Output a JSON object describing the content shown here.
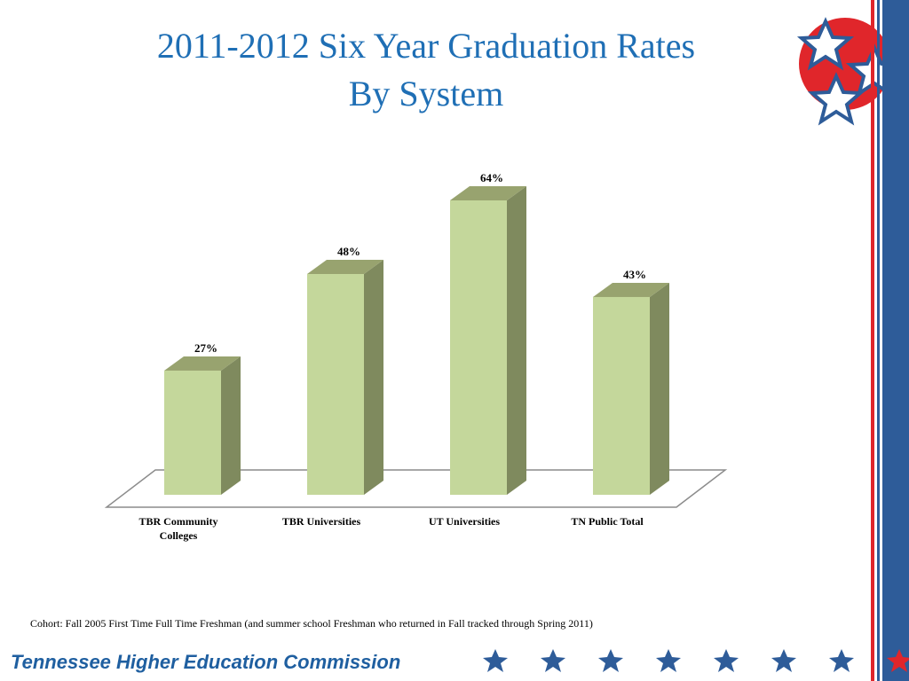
{
  "slide": {
    "title_line_1": "2011-2012 Six Year Graduation Rates",
    "title_line_2": "By System",
    "footnote": "Cohort: Fall 2005 First Time Full Time Freshman (and summer school Freshman who returned in Fall tracked through Spring 2011)",
    "footer_name": "Tennessee Higher Education Commission",
    "logo_icon": "three-stars-circle-icon",
    "footer_star_icon": "star-icon",
    "footer_star_count": 8,
    "colors": {
      "title": "#1f6fb5",
      "bar_front": "#c4d79b",
      "bar_side": "#7f8a5e",
      "bar_top": "#98a36f",
      "stripe_blue": "#2e5c99",
      "stripe_red": "#e0262b",
      "star_blue": "#2e5c99",
      "star_red": "#e0262b"
    }
  },
  "chart_data": {
    "type": "bar",
    "style": "3d-column",
    "categories": [
      "TBR Community Colleges",
      "TBR Universities",
      "UT Universities",
      "TN Public Total"
    ],
    "category_label_lines": [
      [
        "TBR Community",
        "Colleges"
      ],
      [
        "TBR Universities"
      ],
      [
        "UT Universities"
      ],
      [
        "TN Public Total"
      ]
    ],
    "values": [
      27,
      48,
      64,
      43
    ],
    "data_labels": [
      "27%",
      "48%",
      "64%",
      "43%"
    ],
    "unit": "%",
    "ylim": [
      0,
      70
    ],
    "title": "",
    "xlabel": "",
    "ylabel": "",
    "grid": false,
    "legend": "none"
  }
}
